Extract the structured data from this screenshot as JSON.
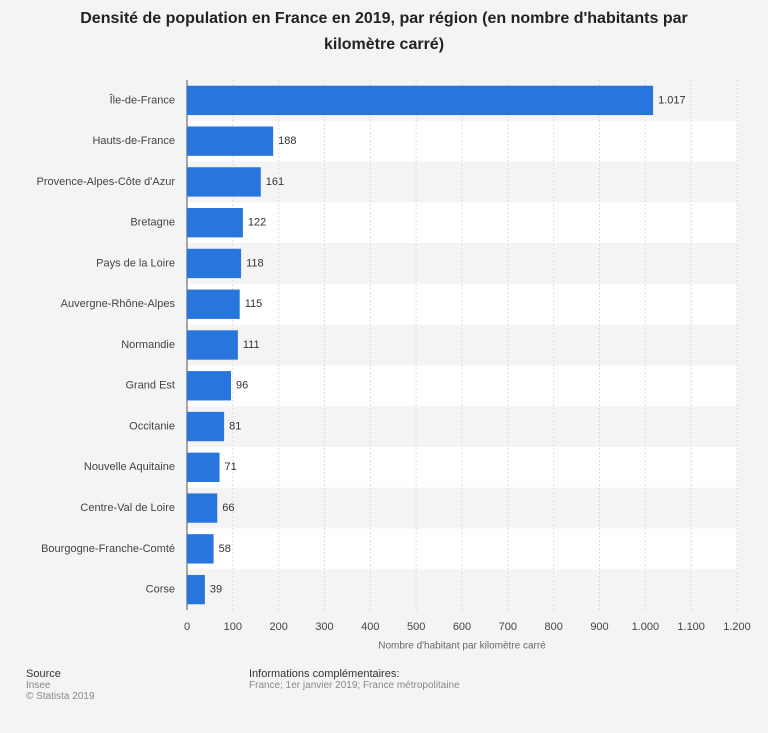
{
  "chart_data": {
    "type": "bar",
    "orientation": "horizontal",
    "title": "Densité de population en France en 2019, par région (en nombre d'habitants par kilomètre carré)",
    "categories": [
      "Île-de-France",
      "Hauts-de-France",
      "Provence-Alpes-Côte d'Azur",
      "Bretagne",
      "Pays de la Loire",
      "Auvergne-Rhône-Alpes",
      "Normandie",
      "Grand Est",
      "Occitanie",
      "Nouvelle Aquitaine",
      "Centre-Val de Loire",
      "Bourgogne-Franche-Comté",
      "Corse"
    ],
    "values": [
      1017,
      188,
      161,
      122,
      118,
      115,
      111,
      96,
      81,
      71,
      66,
      58,
      39
    ],
    "value_labels": [
      "1.017",
      "188",
      "161",
      "122",
      "118",
      "115",
      "111",
      "96",
      "81",
      "71",
      "66",
      "58",
      "39"
    ],
    "color": "#2876dd",
    "xlabel": "Nombre d'habitant par kilomètre carré",
    "xlim": [
      0,
      1200
    ],
    "xticks": [
      0,
      100,
      200,
      300,
      400,
      500,
      600,
      700,
      800,
      900,
      {
        "value": 1000,
        "label": "1.000"
      },
      {
        "value": 1100,
        "label": "1.100"
      },
      {
        "value": 1200,
        "label": "1.200"
      }
    ],
    "grid": true
  },
  "footer": {
    "source_title": "Source",
    "source": "Insee",
    "copyright": "© Statista 2019",
    "info_title": "Informations complémentaires:",
    "info": "France; 1er janvier 2019; France métropolitaine"
  }
}
